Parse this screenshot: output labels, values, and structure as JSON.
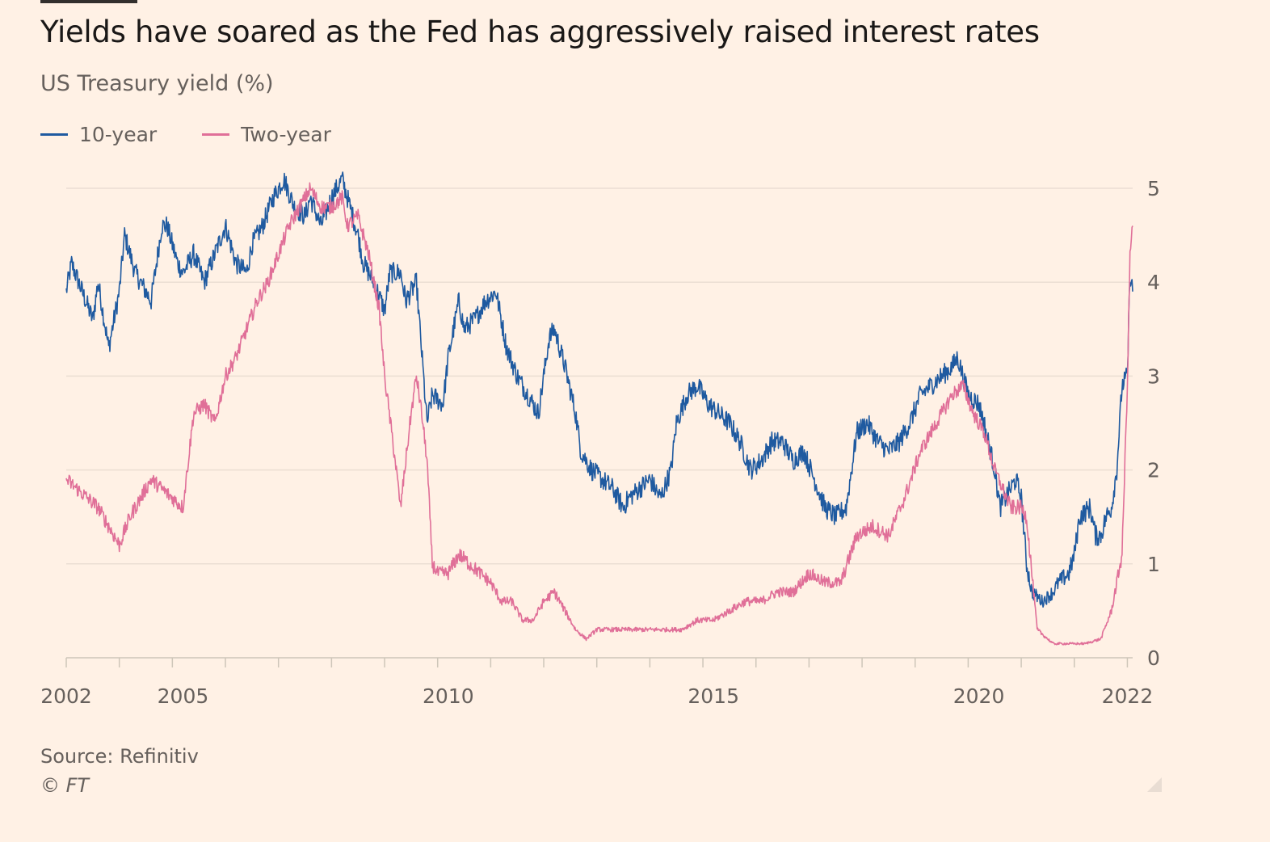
{
  "header": {
    "title": "Yields have soared as the Fed has aggressively raised interest rates",
    "subtitle": "US Treasury yield (%)"
  },
  "legend": [
    {
      "label": "10-year",
      "color": "#1F5AA0"
    },
    {
      "label": "Two-year",
      "color": "#E06F98"
    }
  ],
  "footer": {
    "source": "Source: Refinitiv",
    "copyright": "© FT"
  },
  "chart_data": {
    "type": "line",
    "title": "Yields have soared as the Fed has aggressively raised interest rates",
    "ylabel": "US Treasury yield (%)",
    "xlabel": "",
    "xlim": [
      2002.0,
      2022.1
    ],
    "ylim": [
      0,
      5
    ],
    "y_ticks": [
      0,
      1,
      2,
      3,
      4,
      5
    ],
    "x_tick_labels": [
      "2002",
      "2005",
      "2010",
      "2015",
      "2020",
      "2022"
    ],
    "x_tick_values": [
      2002,
      2004.2,
      2009.2,
      2014.2,
      2019.2,
      2022.0
    ],
    "grid": true,
    "y_axis_side": "right",
    "series": [
      {
        "name": "10-year",
        "color": "#1F5AA0",
        "x": [
          2002.0,
          2002.1,
          2002.3,
          2002.5,
          2002.6,
          2002.8,
          2003.0,
          2003.1,
          2003.3,
          2003.4,
          2003.6,
          2003.8,
          2003.9,
          2004.1,
          2004.2,
          2004.4,
          2004.6,
          2004.8,
          2005.0,
          2005.2,
          2005.4,
          2005.5,
          2005.7,
          2005.9,
          2006.1,
          2006.3,
          2006.5,
          2006.6,
          2006.8,
          2007.0,
          2007.2,
          2007.4,
          2007.5,
          2007.6,
          2007.8,
          2008.0,
          2008.1,
          2008.3,
          2008.4,
          2008.5,
          2008.6,
          2008.8,
          2008.9,
          2009.1,
          2009.2,
          2009.4,
          2009.5,
          2009.7,
          2009.9,
          2010.1,
          2010.3,
          2010.5,
          2010.7,
          2010.9,
          2011.1,
          2011.2,
          2011.4,
          2011.6,
          2011.7,
          2011.9,
          2012.1,
          2012.3,
          2012.5,
          2012.6,
          2012.8,
          2013.0,
          2013.2,
          2013.4,
          2013.5,
          2013.7,
          2013.9,
          2014.1,
          2014.3,
          2014.5,
          2014.7,
          2014.9,
          2015.1,
          2015.3,
          2015.5,
          2015.7,
          2015.9,
          2016.1,
          2016.3,
          2016.5,
          2016.7,
          2016.9,
          2017.1,
          2017.3,
          2017.5,
          2017.7,
          2017.9,
          2018.1,
          2018.3,
          2018.5,
          2018.7,
          2018.8,
          2019.0,
          2019.2,
          2019.3,
          2019.5,
          2019.6,
          2019.8,
          2019.9,
          2020.0,
          2020.1,
          2020.2,
          2020.4,
          2020.6,
          2020.7,
          2020.9,
          2021.0,
          2021.1,
          2021.3,
          2021.4,
          2021.5,
          2021.6,
          2021.7,
          2021.8,
          2021.9,
          2022.0,
          2022.05,
          2022.1
        ],
        "values": [
          3.9,
          4.2,
          3.9,
          3.6,
          4.0,
          3.3,
          3.9,
          4.5,
          4.1,
          4.0,
          3.8,
          4.6,
          4.6,
          4.2,
          4.1,
          4.3,
          4.0,
          4.3,
          4.6,
          4.2,
          4.1,
          4.4,
          4.6,
          4.9,
          5.1,
          4.8,
          4.7,
          4.9,
          4.6,
          4.9,
          5.1,
          4.7,
          4.5,
          4.2,
          4.0,
          3.7,
          4.1,
          4.1,
          3.8,
          3.9,
          4.0,
          2.5,
          2.8,
          2.7,
          3.2,
          3.8,
          3.5,
          3.6,
          3.8,
          3.9,
          3.3,
          3.0,
          2.8,
          2.6,
          3.4,
          3.5,
          3.1,
          2.6,
          2.2,
          2.0,
          1.9,
          1.8,
          1.6,
          1.7,
          1.8,
          1.9,
          1.7,
          2.0,
          2.5,
          2.8,
          2.9,
          2.7,
          2.6,
          2.5,
          2.3,
          2.0,
          2.1,
          2.3,
          2.3,
          2.1,
          2.2,
          1.9,
          1.6,
          1.5,
          1.6,
          2.4,
          2.5,
          2.3,
          2.2,
          2.3,
          2.5,
          2.8,
          2.9,
          3.0,
          3.1,
          3.2,
          2.8,
          2.7,
          2.5,
          2.0,
          1.6,
          1.8,
          1.9,
          1.7,
          1.0,
          0.7,
          0.6,
          0.7,
          0.8,
          0.9,
          1.1,
          1.5,
          1.6,
          1.3,
          1.3,
          1.5,
          1.6,
          2.0,
          2.9,
          3.0,
          4.1,
          3.9
        ],
        "values_note": "approximate daily series rendered from these anchors"
      },
      {
        "name": "Two-year",
        "color": "#E06F98",
        "x": [
          2002.0,
          2002.2,
          2002.4,
          2002.6,
          2002.8,
          2003.0,
          2003.2,
          2003.4,
          2003.6,
          2003.8,
          2004.0,
          2004.2,
          2004.4,
          2004.6,
          2004.8,
          2005.0,
          2005.2,
          2005.4,
          2005.6,
          2005.8,
          2006.0,
          2006.2,
          2006.4,
          2006.6,
          2006.8,
          2007.0,
          2007.2,
          2007.3,
          2007.5,
          2007.7,
          2007.9,
          2008.0,
          2008.2,
          2008.3,
          2008.5,
          2008.6,
          2008.7,
          2008.8,
          2008.9,
          2009.0,
          2009.2,
          2009.4,
          2009.6,
          2009.8,
          2010.0,
          2010.2,
          2010.4,
          2010.6,
          2010.8,
          2011.0,
          2011.2,
          2011.4,
          2011.6,
          2011.8,
          2012.0,
          2012.3,
          2012.6,
          2013.0,
          2013.3,
          2013.6,
          2013.9,
          2014.2,
          2014.5,
          2014.8,
          2015.1,
          2015.4,
          2015.7,
          2016.0,
          2016.3,
          2016.6,
          2016.9,
          2017.2,
          2017.5,
          2017.8,
          2018.1,
          2018.4,
          2018.7,
          2018.9,
          2019.1,
          2019.3,
          2019.5,
          2019.8,
          2020.0,
          2020.1,
          2020.3,
          2020.6,
          2020.9,
          2021.2,
          2021.5,
          2021.7,
          2021.9,
          2022.0,
          2022.05,
          2022.1
        ],
        "values": [
          1.9,
          1.8,
          1.7,
          1.6,
          1.4,
          1.2,
          1.5,
          1.7,
          1.9,
          1.8,
          1.7,
          1.6,
          2.6,
          2.7,
          2.5,
          3.0,
          3.2,
          3.5,
          3.8,
          4.0,
          4.3,
          4.6,
          4.8,
          5.0,
          4.8,
          4.8,
          4.9,
          4.6,
          4.7,
          4.3,
          3.7,
          3.0,
          2.1,
          1.6,
          2.6,
          3.0,
          2.6,
          2.1,
          1.0,
          0.9,
          0.9,
          1.1,
          1.0,
          0.9,
          0.8,
          0.6,
          0.6,
          0.4,
          0.4,
          0.6,
          0.7,
          0.5,
          0.3,
          0.2,
          0.3,
          0.3,
          0.3,
          0.3,
          0.3,
          0.3,
          0.4,
          0.4,
          0.5,
          0.6,
          0.6,
          0.7,
          0.7,
          0.9,
          0.8,
          0.8,
          1.3,
          1.4,
          1.3,
          1.7,
          2.2,
          2.5,
          2.8,
          2.9,
          2.6,
          2.4,
          2.0,
          1.6,
          1.6,
          1.5,
          0.3,
          0.15,
          0.15,
          0.15,
          0.2,
          0.5,
          1.1,
          2.9,
          4.3,
          4.6
        ],
        "values_note": "approximate daily series rendered from these anchors"
      }
    ]
  }
}
